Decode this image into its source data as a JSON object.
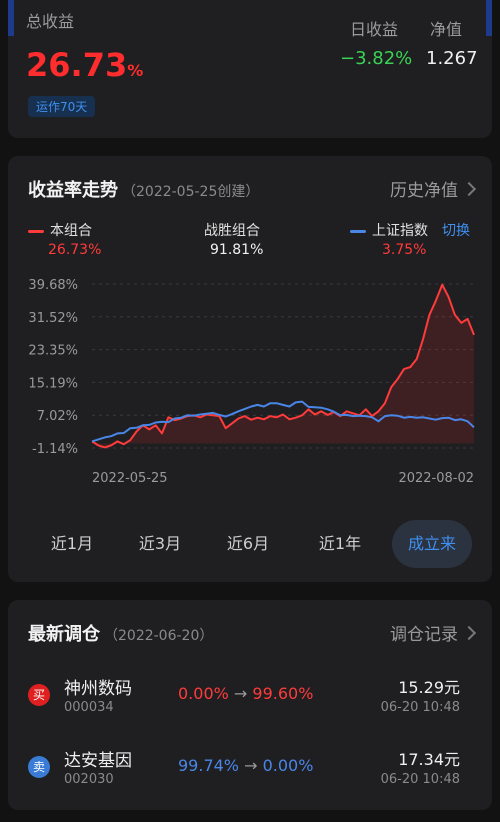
{
  "top": {
    "total_label": "总收益",
    "total_value": "26.73",
    "total_unit": "%",
    "daily_label": "日收益",
    "daily_value": "−3.82%",
    "nav_label": "净值",
    "nav_value": "1.267",
    "running_days": "运作70天"
  },
  "chart_card": {
    "title": "收益率走势",
    "created": "（2022-05-25创建）",
    "history_link": "历史净值",
    "portfolio_label": "本组合",
    "portfolio_value": "26.73%",
    "beat_label": "战胜组合",
    "beat_value": "91.81%",
    "index_label": "上证指数",
    "index_value": "3.75%",
    "switch_label": "切换",
    "x_start": "2022-05-25",
    "x_end": "2022-08-02",
    "ranges": [
      "近1月",
      "近3月",
      "近6月",
      "近1年",
      "成立来"
    ],
    "active_range": "成立来"
  },
  "chart_data": {
    "type": "line",
    "y_ticks": [
      "39.68%",
      "31.52%",
      "23.35%",
      "15.19%",
      "7.02%",
      "-1.14%"
    ],
    "ylim": [
      -1.14,
      39.68
    ],
    "x_labels": [
      "2022-05-25",
      "2022-08-02"
    ],
    "series": [
      {
        "name": "本组合",
        "color": "#ff3b3b",
        "values": [
          0.5,
          -0.5,
          -1.0,
          -0.5,
          0.5,
          -0.2,
          0.8,
          3.0,
          4.5,
          3.5,
          4.5,
          2.5,
          6.5,
          5.8,
          6.2,
          6.8,
          7.0,
          6.5,
          7.2,
          7.0,
          6.8,
          3.8,
          5.0,
          6.2,
          6.8,
          5.9,
          6.4,
          6.0,
          6.8,
          6.5,
          7.2,
          6.0,
          6.4,
          7.0,
          8.5,
          7.2,
          8.0,
          7.1,
          7.8,
          6.8,
          8.0,
          7.5,
          7.0,
          8.5,
          6.8,
          8.0,
          10.0,
          14.0,
          16.0,
          18.5,
          19.0,
          21.0,
          26.0,
          32.0,
          35.5,
          39.5,
          36.5,
          32.0,
          30.0,
          31.0,
          27.0
        ]
      },
      {
        "name": "上证指数",
        "color": "#4a86e8",
        "values": [
          0.5,
          1.0,
          1.5,
          1.8,
          2.5,
          2.6,
          3.8,
          3.9,
          4.5,
          4.6,
          5.2,
          5.4,
          5.3,
          6.2,
          6.4,
          7.0,
          6.9,
          7.2,
          7.4,
          7.6,
          7.1,
          6.7,
          7.3,
          8.0,
          8.6,
          9.2,
          9.6,
          9.2,
          10.0,
          10.0,
          9.6,
          9.2,
          10.2,
          10.4,
          9.1,
          9.0,
          8.9,
          8.5,
          7.9,
          7.0,
          7.1,
          6.8,
          6.9,
          6.8,
          6.5,
          5.5,
          6.8,
          7.0,
          6.9,
          6.4,
          6.6,
          6.4,
          6.5,
          6.2,
          5.9,
          6.3,
          6.4,
          5.8,
          6.0,
          5.5,
          4.0
        ]
      }
    ],
    "grid": true
  },
  "rebalance": {
    "title": "最新调仓",
    "date": "（2022-06-20）",
    "history_link": "调仓记录",
    "items": [
      {
        "badge": "买",
        "name": "神州数码",
        "code": "000034",
        "from": "0.00%",
        "arrow": "→",
        "to": "99.60%",
        "price": "15.29元",
        "time": "06-20  10:48",
        "badge_color": "#e02020",
        "change_color": "#ff3b3b"
      },
      {
        "badge": "卖",
        "name": "达安基因",
        "code": "002030",
        "from": "99.74%",
        "arrow": "→",
        "to": "0.00%",
        "price": "17.34元",
        "time": "06-20  10:48",
        "badge_color": "#3a7bd5",
        "change_color": "#4a86e8"
      }
    ]
  }
}
